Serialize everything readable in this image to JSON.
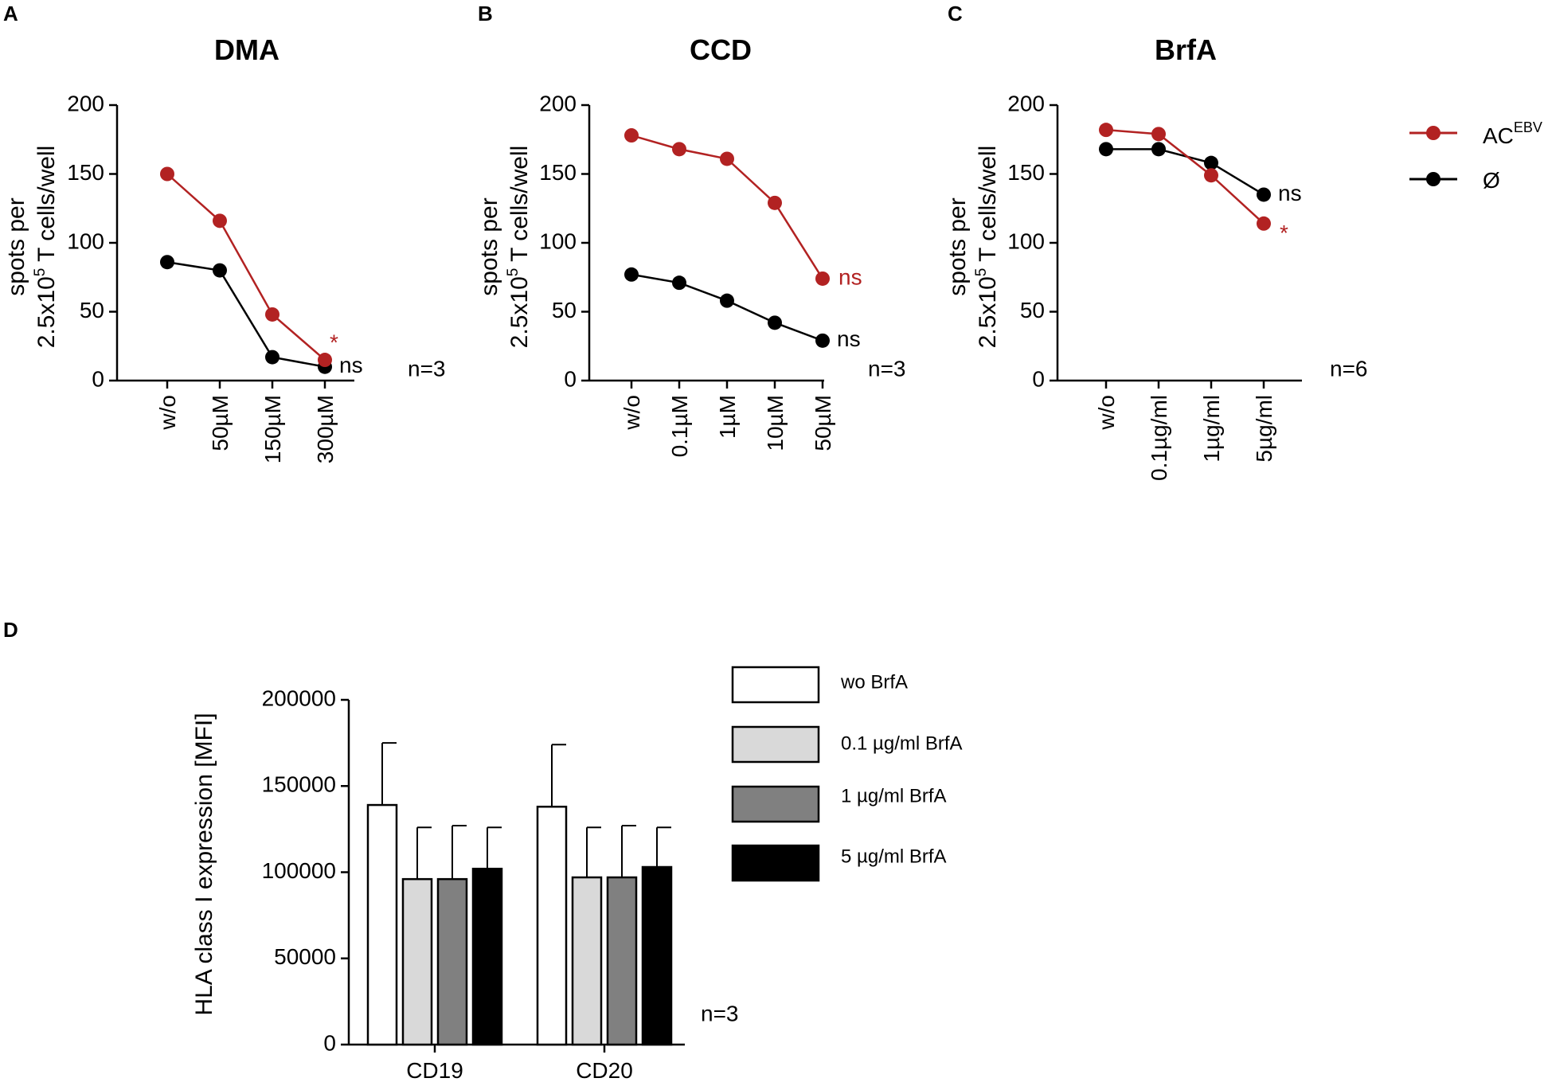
{
  "colors": {
    "red": "#b22222",
    "black": "#000000",
    "bars": [
      "#ffffff",
      "#d9d9d9",
      "#808080",
      "#000000"
    ]
  },
  "legend_top": {
    "entries": [
      {
        "label": "AC",
        "sup": "EBV",
        "color": "#b22222"
      },
      {
        "label": "Ø",
        "color": "#000000"
      }
    ]
  },
  "legend_d": {
    "entries": [
      "wo BrfA",
      "0.1 µg/ml BrfA",
      "1 µg/ml BrfA",
      "5 µg/ml BrfA"
    ]
  },
  "chart_data": [
    {
      "type": "line",
      "panel": "A",
      "title": "DMA",
      "ylabel_line1": "spots per",
      "ylabel_line2": "2.5x10",
      "ylabel_sup": "5",
      "ylabel_line2_rest": " T cells/well",
      "ylim": [
        0,
        200
      ],
      "yticks": [
        0,
        50,
        100,
        150,
        200
      ],
      "categories": [
        "w/o",
        "50µM",
        "150µM",
        "300µM"
      ],
      "series": [
        {
          "name": "AC EBV",
          "color": "#b22222",
          "values": [
            150,
            116,
            48,
            15
          ]
        },
        {
          "name": "Ø",
          "color": "#000000",
          "values": [
            86,
            80,
            17,
            10
          ]
        }
      ],
      "annotations": {
        "red": "*",
        "black": "ns",
        "n": "n=3"
      }
    },
    {
      "type": "line",
      "panel": "B",
      "title": "CCD",
      "ylabel_line1": "spots per",
      "ylabel_line2": "2.5x10",
      "ylabel_sup": "5",
      "ylabel_line2_rest": " T cells/well",
      "ylim": [
        0,
        200
      ],
      "yticks": [
        0,
        50,
        100,
        150,
        200
      ],
      "categories": [
        "w/o",
        "0.1µM",
        "1µM",
        "10µM",
        "50µM"
      ],
      "series": [
        {
          "name": "AC EBV",
          "color": "#b22222",
          "values": [
            178,
            168,
            161,
            129,
            74
          ]
        },
        {
          "name": "Ø",
          "color": "#000000",
          "values": [
            77,
            71,
            58,
            42,
            29
          ]
        }
      ],
      "annotations": {
        "red": "ns",
        "black": "ns",
        "n": "n=3"
      }
    },
    {
      "type": "line",
      "panel": "C",
      "title": "BrfA",
      "ylabel_line1": "spots per",
      "ylabel_line2": "2.5x10",
      "ylabel_sup": "5",
      "ylabel_line2_rest": " T cells/well",
      "ylim": [
        0,
        200
      ],
      "yticks": [
        0,
        50,
        100,
        150,
        200
      ],
      "categories": [
        "w/o",
        "0.1µg/ml",
        "1µg/ml",
        "5µg/ml"
      ],
      "series": [
        {
          "name": "AC EBV",
          "color": "#b22222",
          "values": [
            182,
            179,
            149,
            114
          ]
        },
        {
          "name": "Ø",
          "color": "#000000",
          "values": [
            168,
            168,
            158,
            135
          ]
        }
      ],
      "annotations": {
        "red": "*",
        "black": "ns",
        "n": "n=6"
      }
    },
    {
      "type": "bar",
      "panel": "D",
      "title": "",
      "ylabel": "HLA class I expression [MFI]",
      "ylim": [
        0,
        200000
      ],
      "yticks": [
        0,
        50000,
        100000,
        150000,
        200000
      ],
      "categories": [
        "CD19",
        "CD20"
      ],
      "series": [
        {
          "name": "wo BrfA",
          "color": "#ffffff",
          "values": [
            139000,
            138000
          ],
          "errors": [
            36000,
            36000
          ]
        },
        {
          "name": "0.1 µg/ml BrfA",
          "color": "#d9d9d9",
          "values": [
            96000,
            97000
          ],
          "errors": [
            30000,
            29000
          ]
        },
        {
          "name": "1 µg/ml BrfA",
          "color": "#808080",
          "values": [
            96000,
            97000
          ],
          "errors": [
            31000,
            30000
          ]
        },
        {
          "name": "5 µg/ml BrfA",
          "color": "#000000",
          "values": [
            102000,
            103000
          ],
          "errors": [
            24000,
            23000
          ]
        }
      ],
      "annotations": {
        "n": "n=3"
      }
    }
  ]
}
